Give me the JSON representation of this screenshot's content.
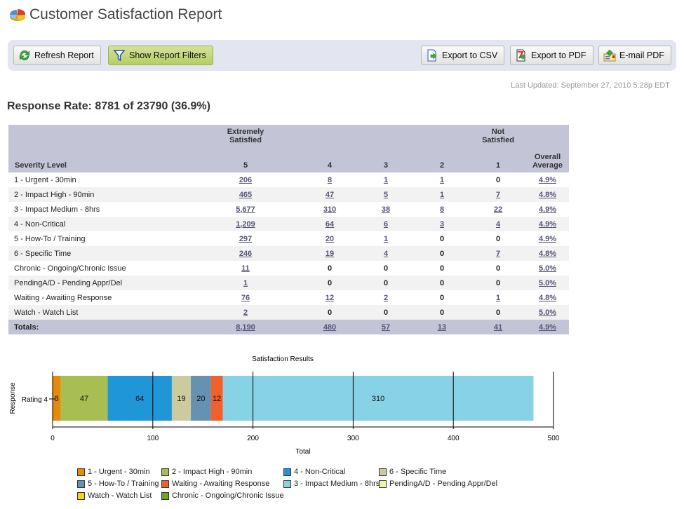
{
  "header": {
    "title": "Customer Satisfaction Report",
    "logo_icon": "pie-chart-icon"
  },
  "toolbar": {
    "refresh_label": "Refresh Report",
    "filters_label": "Show Report Filters",
    "export_csv_label": "Export to CSV",
    "export_pdf_label": "Export to PDF",
    "email_pdf_label": "E-mail PDF"
  },
  "last_updated": "Last Updated: September 27, 2010 5:28p EDT",
  "response_rate": "Response Rate: 8781 of 23790 (36.9%)",
  "table": {
    "group_headers": {
      "extremely_satisfied": [
        "Extremely",
        "Satisfied"
      ],
      "not_satisfied": [
        "Not",
        "Satisfied"
      ]
    },
    "columns": [
      "Severity Level",
      "5",
      "4",
      "3",
      "2",
      "1",
      "Overall Average"
    ],
    "overall_average_lines": [
      "Overall",
      "Average"
    ],
    "rows": [
      {
        "label": "1 - Urgent - 30min",
        "c5": "206",
        "c4": "8",
        "c3": "1",
        "c2": "1",
        "c1": "0",
        "avg": "4.9%"
      },
      {
        "label": "2 - Impact High - 90min",
        "c5": "465",
        "c4": "47",
        "c3": "5",
        "c2": "1",
        "c1": "7",
        "avg": "4.8%"
      },
      {
        "label": "3 - Impact Medium - 8hrs",
        "c5": "5,677",
        "c4": "310",
        "c3": "38",
        "c2": "8",
        "c1": "22",
        "avg": "4.9%"
      },
      {
        "label": "4 - Non-Critical",
        "c5": "1,209",
        "c4": "64",
        "c3": "6",
        "c2": "3",
        "c1": "4",
        "avg": "4.9%"
      },
      {
        "label": "5 - How-To / Training",
        "c5": "297",
        "c4": "20",
        "c3": "1",
        "c2": "0",
        "c1": "0",
        "avg": "4.9%"
      },
      {
        "label": "6 - Specific Time",
        "c5": "246",
        "c4": "19",
        "c3": "4",
        "c2": "0",
        "c1": "7",
        "avg": "4.8%"
      },
      {
        "label": "Chronic - Ongoing/Chronic Issue",
        "c5": "11",
        "c4": "0",
        "c3": "0",
        "c2": "0",
        "c1": "0",
        "avg": "5.0%"
      },
      {
        "label": "PendingA/D - Pending Appr/Del",
        "c5": "1",
        "c4": "0",
        "c3": "0",
        "c2": "0",
        "c1": "0",
        "avg": "5.0%"
      },
      {
        "label": "Waiting - Awaiting Response",
        "c5": "76",
        "c4": "12",
        "c3": "2",
        "c2": "0",
        "c1": "1",
        "avg": "4.8%"
      },
      {
        "label": "Watch - Watch List",
        "c5": "2",
        "c4": "0",
        "c3": "0",
        "c2": "0",
        "c1": "0",
        "avg": "5.0%"
      }
    ],
    "totals": {
      "label": "Totals:",
      "c5": "8,190",
      "c4": "480",
      "c3": "57",
      "c2": "13",
      "c1": "41",
      "avg": "4.9%"
    }
  },
  "chart_data": {
    "type": "bar",
    "orientation": "horizontal-stacked",
    "title": "Satisfaction Results",
    "xlabel": "Total",
    "ylabel": "Response",
    "categories": [
      "Rating 4"
    ],
    "xlim": [
      0,
      500
    ],
    "xticks": [
      0,
      100,
      200,
      300,
      400,
      500
    ],
    "series": [
      {
        "name": "1 - Urgent - 30min",
        "values": [
          8
        ],
        "color": "#e68a0a"
      },
      {
        "name": "2 - Impact High - 90min",
        "values": [
          47
        ],
        "color": "#a8bd52"
      },
      {
        "name": "4 - Non-Critical",
        "values": [
          64
        ],
        "color": "#1e96d8"
      },
      {
        "name": "6 - Specific Time",
        "values": [
          19
        ],
        "color": "#cccba0"
      },
      {
        "name": "5 - How-To / Training",
        "values": [
          20
        ],
        "color": "#6592b0"
      },
      {
        "name": "Waiting - Awaiting Response",
        "values": [
          12
        ],
        "color": "#f0602a"
      },
      {
        "name": "3 - Impact Medium - 8hrs",
        "values": [
          310
        ],
        "color": "#87d2e4"
      },
      {
        "name": "PendingA/D - Pending Appr/Del",
        "values": [
          0
        ],
        "color": "#eef5a6"
      },
      {
        "name": "Watch - Watch List",
        "values": [
          0
        ],
        "color": "#f6d21c"
      },
      {
        "name": "Chronic - Ongoing/Chronic Issue",
        "values": [
          0
        ],
        "color": "#6aa61e"
      }
    ],
    "legend": {
      "position": "bottom",
      "order": [
        "1 - Urgent - 30min",
        "2 - Impact High - 90min",
        "4 - Non-Critical",
        "6 - Specific Time",
        "5 - How-To / Training",
        "Waiting - Awaiting Response",
        "3 - Impact Medium - 8hrs",
        "PendingA/D - Pending Appr/Del",
        "Watch - Watch List",
        "Chronic - Ongoing/Chronic Issue"
      ]
    },
    "grid": false
  }
}
